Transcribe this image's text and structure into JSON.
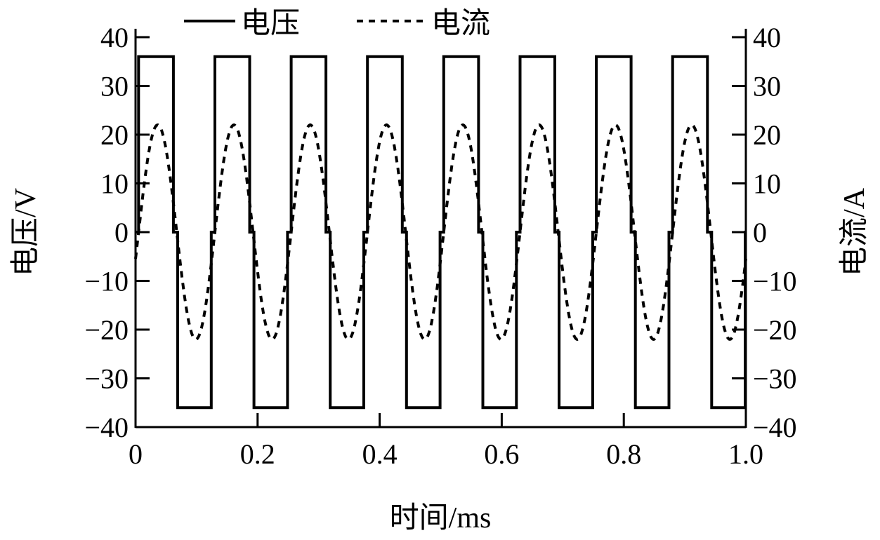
{
  "chart_data": {
    "type": "line",
    "title": "",
    "xlabel": "时间/ms",
    "ylabel_left": "电压/V",
    "ylabel_right": "电流/A",
    "xlim": [
      0,
      1.0
    ],
    "ylim_left": [
      -40,
      40
    ],
    "ylim_right": [
      -40,
      40
    ],
    "xticks": [
      "0",
      "0.2",
      "0.4",
      "0.6",
      "0.8",
      "1.0"
    ],
    "xtick_values": [
      0,
      0.2,
      0.4,
      0.6,
      0.8,
      1.0
    ],
    "yticks": [
      "40",
      "30",
      "20",
      "10",
      "0",
      "−10",
      "−20",
      "−30",
      "−40"
    ],
    "ytick_values": [
      40,
      30,
      20,
      10,
      0,
      -10,
      -20,
      -30,
      -40
    ],
    "grid": false,
    "legend_position": "top",
    "series": [
      {
        "name": "电压",
        "style": "solid",
        "axis": "left",
        "waveform": "quasi-square",
        "amplitude": 36,
        "period": 0.125,
        "positive_interval": [
          0.005,
          0.062
        ],
        "negative_interval": [
          0.069,
          0.124
        ]
      },
      {
        "name": "电流",
        "style": "dashed",
        "axis": "right",
        "waveform": "sine",
        "amplitude": 22,
        "period": 0.125,
        "phase": 0.005
      }
    ],
    "color": "#000000"
  }
}
